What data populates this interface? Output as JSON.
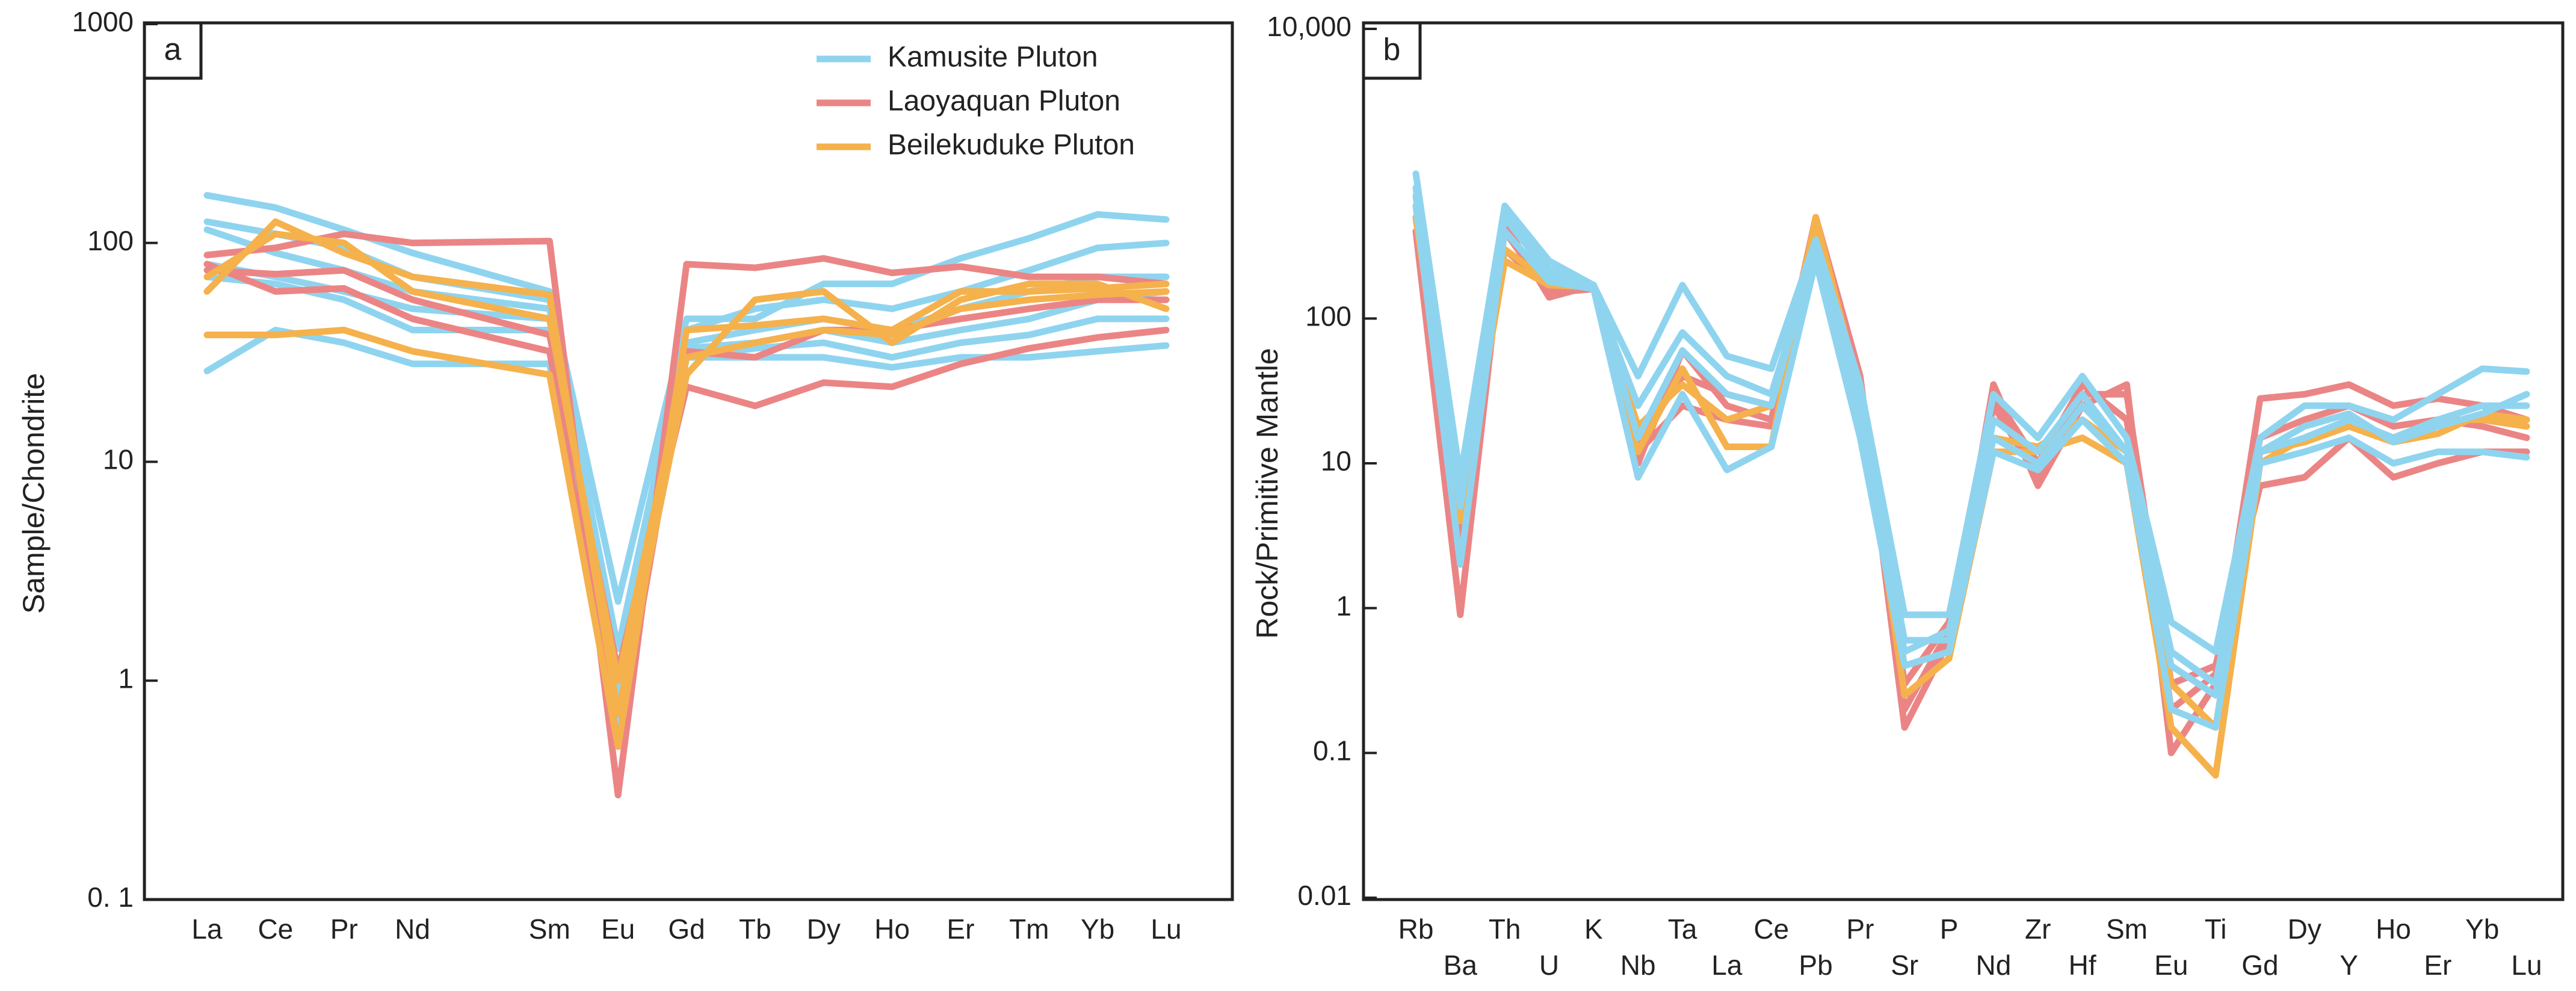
{
  "chart_data": [
    {
      "type": "line",
      "title": "a",
      "ylabel": "Sample/Chondrite",
      "log_scale": true,
      "legend": "upper right",
      "categories": [
        "La",
        "Ce",
        "Pr",
        "Nd",
        "Sm",
        "Eu",
        "Gd",
        "Tb",
        "Dy",
        "Ho",
        "Er",
        "Tm",
        "Yb",
        "Lu"
      ],
      "ylim": [
        0.1,
        1000
      ],
      "yticks": [
        {
          "value": 0.1,
          "label": "0. 1"
        },
        1,
        10,
        100,
        1000
      ],
      "series": [
        {
          "name": "Kamusite Pluton",
          "color": "#8fd4ef",
          "samples": [
            [
              165,
              145,
              115,
              90,
              60,
              2.3,
              45,
              45,
              65,
              65,
              85,
              105,
              135,
              128
            ],
            [
              125,
              110,
              95,
              70,
              55,
              1.4,
              40,
              50,
              55,
              50,
              60,
              75,
              95,
              100
            ],
            [
              115,
              90,
              75,
              60,
              50,
              0.9,
              35,
              40,
              45,
              40,
              50,
              60,
              70,
              70
            ],
            [
              80,
              70,
              60,
              50,
              45,
              0.7,
              33,
              35,
              40,
              35,
              40,
              45,
              55,
              60
            ],
            [
              26,
              40,
              35,
              28,
              28,
              0.6,
              30,
              30,
              30,
              27,
              30,
              30,
              32,
              34
            ],
            [
              70,
              65,
              55,
              40,
              40,
              0.8,
              30,
              33,
              35,
              30,
              35,
              38,
              45,
              45
            ]
          ]
        },
        {
          "name": "Laoyaquan Pluton",
          "color": "#eb8585",
          "samples": [
            [
              88,
              95,
              110,
              100,
              102,
              0.3,
              80,
              77,
              85,
              73,
              78,
              70,
              70,
              65
            ],
            [
              75,
              72,
              75,
              55,
              38,
              1.1,
              22,
              18,
              23,
              22,
              28,
              33,
              37,
              40
            ],
            [
              80,
              60,
              62,
              45,
              32,
              0.5,
              32,
              30,
              40,
              40,
              45,
              50,
              55,
              55
            ]
          ]
        },
        {
          "name": "Beilekuduke Pluton",
          "color": "#f5b14c",
          "samples": [
            [
              60,
              125,
              90,
              70,
              58,
              0.7,
              25,
              55,
              60,
              35,
              55,
              65,
              65,
              50
            ],
            [
              38,
              38,
              40,
              32,
              25,
              0.5,
              40,
              42,
              45,
              40,
              60,
              60,
              62,
              65
            ],
            [
              70,
              110,
              100,
              60,
              45,
              1.0,
              30,
              35,
              40,
              38,
              50,
              55,
              58,
              60
            ]
          ]
        }
      ]
    },
    {
      "type": "line",
      "title": "b",
      "ylabel": "Rock/Primitive Mantle",
      "log_scale": true,
      "categories": [
        "Rb",
        "Ba",
        "Th",
        "U",
        "K",
        "Nb",
        "Ta",
        "La",
        "Ce",
        "Pb",
        "Pr",
        "Sr",
        "P",
        "Nd",
        "Zr",
        "Hf",
        "Sm",
        "Eu",
        "Ti",
        "Gd",
        "Dy",
        "Y",
        "Ho",
        "Er",
        "Yb",
        "Lu"
      ],
      "ylim": [
        0.01,
        10000
      ],
      "yticks": [
        0.01,
        0.1,
        1,
        10,
        100,
        {
          "value": 10000,
          "label": "10,000"
        }
      ],
      "series": [
        {
          "color": "#eb8585",
          "samples": [
            [
              400,
              0.9,
              450,
              140,
              170,
              10,
              60,
              25,
              20,
              500,
              40,
              0.15,
              0.6,
              35,
              7,
              25,
              35,
              0.1,
              0.3,
              28,
              30,
              35,
              25,
              28,
              25,
              20
            ],
            [
              500,
              3,
              300,
              160,
              165,
              12,
              25,
              20,
              18,
              400,
              30,
              0.3,
              0.8,
              25,
              8,
              30,
              30,
              0.3,
              0.4,
              7,
              8,
              15,
              8,
              10,
              12,
              12
            ],
            [
              600,
              5,
              400,
              150,
              160,
              14,
              40,
              30,
              25,
              450,
              35,
              0.2,
              0.7,
              30,
              10,
              35,
              20,
              0.2,
              0.35,
              15,
              20,
              25,
              18,
              20,
              18,
              15
            ]
          ]
        },
        {
          "color": "#f5b14c",
          "samples": [
            [
              500,
              4,
              250,
              170,
              165,
              12,
              45,
              13,
              13,
              500,
              30,
              0.25,
              0.45,
              12,
              12,
              15,
              10,
              0.15,
              0.07,
              10,
              15,
              20,
              15,
              20,
              20,
              18
            ],
            [
              700,
              6,
              300,
              180,
              170,
              18,
              35,
              20,
              25,
              450,
              25,
              0.4,
              0.5,
              15,
              13,
              20,
              12,
              0.3,
              0.15,
              12,
              14,
              18,
              14,
              16,
              22,
              20
            ]
          ]
        },
        {
          "color": "#8fd4ef",
          "samples": [
            [
              1000,
              8,
              600,
              250,
              170,
              40,
              170,
              55,
              45,
              350,
              35,
              0.9,
              0.9,
              30,
              15,
              40,
              15,
              0.8,
              0.5,
              15,
              25,
              25,
              20,
              30,
              45,
              43
            ],
            [
              700,
              5,
              500,
              200,
              160,
              25,
              80,
              40,
              30,
              300,
              25,
              0.6,
              0.6,
              20,
              12,
              30,
              12,
              0.5,
              0.3,
              12,
              15,
              20,
              15,
              20,
              25,
              25
            ],
            [
              600,
              2,
              400,
              180,
              160,
              8,
              30,
              9,
              13,
              250,
              15,
              0.4,
              0.5,
              12,
              9,
              20,
              10,
              0.2,
              0.15,
              10,
              12,
              15,
              10,
              12,
              12,
              11
            ],
            [
              800,
              6,
              550,
              220,
              170,
              15,
              60,
              30,
              25,
              320,
              20,
              0.5,
              0.7,
              15,
              10,
              25,
              12,
              0.4,
              0.25,
              12,
              18,
              22,
              14,
              18,
              22,
              30
            ]
          ]
        }
      ]
    }
  ]
}
